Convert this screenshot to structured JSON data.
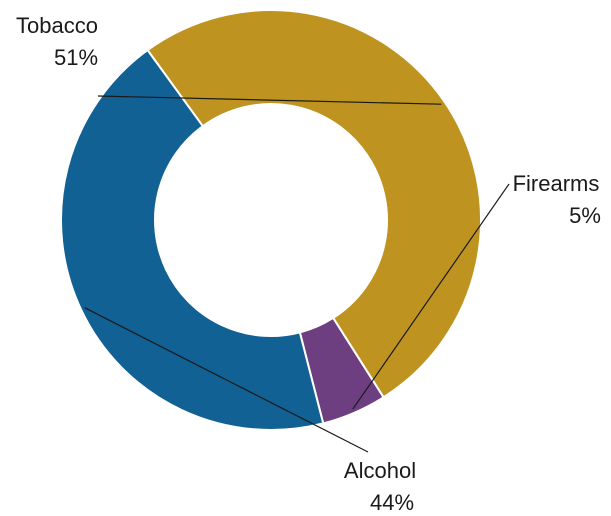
{
  "chart_data": {
    "type": "pie",
    "variant": "donut",
    "title": "",
    "slices": [
      {
        "name": "Tobacco",
        "value": 51,
        "value_label": "51%",
        "color": "#BE9320"
      },
      {
        "name": "Firearms",
        "value": 5,
        "value_label": "5%",
        "color": "#6E3F80"
      },
      {
        "name": "Alcohol",
        "value": 44,
        "value_label": "44%",
        "color": "#116194"
      }
    ],
    "legend": "none"
  }
}
